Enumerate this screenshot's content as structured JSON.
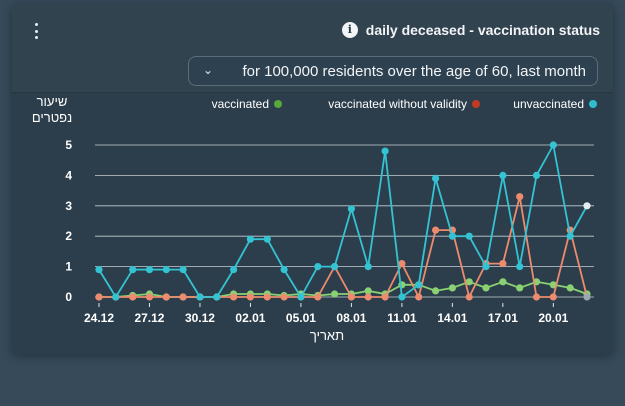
{
  "header": {
    "title": "daily deceased - vaccination status",
    "info_icon": "info-icon",
    "menu_icon": "kebab-menu-icon",
    "filter": {
      "selected": "for 100,000 residents over the age of 60, last month",
      "chevron_icon": "chevron-down-icon"
    }
  },
  "colors": {
    "vaccinated": "#8ad173",
    "vaccinated_legend": "#5aa83a",
    "without_validity": "#ec8b6e",
    "without_validity_legend": "#c23b21",
    "unvaccinated": "#34c3d2",
    "unvaccinated_legend": "#2fbdd0",
    "grid": "#e1e7ea",
    "text": "#ffffff"
  },
  "chart_data": {
    "type": "line",
    "ylabel": "שיעור נפטרים",
    "xlabel": "תאריך",
    "ylim": [
      0,
      5
    ],
    "yticks": [
      0,
      1,
      2,
      3,
      4,
      5
    ],
    "grid": true,
    "legend_position": "top",
    "legend": [
      "unvaccinated",
      "vaccinated without validity",
      "vaccinated"
    ],
    "x": [
      "24.12",
      "25.12",
      "26.12",
      "27.12",
      "28.12",
      "29.12",
      "30.12",
      "31.12",
      "01.01",
      "02.01",
      "03.01",
      "04.01",
      "05.01",
      "06.01",
      "07.01",
      "08.01",
      "09.01",
      "10.01",
      "11.01",
      "12.01",
      "13.01",
      "14.01",
      "15.01",
      "16.01",
      "17.01",
      "18.01",
      "19.01",
      "20.01",
      "21.01",
      "22.01"
    ],
    "tick_labels": [
      {
        "index": 0,
        "label": "24.12"
      },
      {
        "index": 3,
        "label": "27.12"
      },
      {
        "index": 6,
        "label": "30.12"
      },
      {
        "index": 9,
        "label": "02.01"
      },
      {
        "index": 12,
        "label": "05.01"
      },
      {
        "index": 15,
        "label": "08.01"
      },
      {
        "index": 18,
        "label": "11.01"
      },
      {
        "index": 21,
        "label": "14.01"
      },
      {
        "index": 24,
        "label": "17.01"
      },
      {
        "index": 27,
        "label": "20.01"
      }
    ],
    "series": [
      {
        "name": "unvaccinated",
        "key": "unvaccinated",
        "values": [
          0.9,
          0,
          0.9,
          0.9,
          0.9,
          0.9,
          0,
          0,
          0.9,
          1.9,
          1.9,
          0.9,
          0,
          1.0,
          1.0,
          2.9,
          1.0,
          4.8,
          0,
          0.4,
          3.9,
          2.0,
          2.0,
          1.0,
          4.0,
          1.0,
          4.0,
          5.0,
          2.0,
          3.0
        ]
      },
      {
        "name": "vaccinated without validity",
        "key": "without_validity",
        "values": [
          0,
          0,
          0,
          0,
          0,
          0,
          0,
          0,
          0,
          0,
          0,
          0,
          0,
          0,
          1.0,
          0,
          0,
          0,
          1.1,
          0,
          2.2,
          2.2,
          0,
          1.1,
          1.1,
          3.3,
          0,
          0,
          2.2,
          0
        ]
      },
      {
        "name": "vaccinated",
        "key": "vaccinated",
        "values": [
          0,
          0,
          0.05,
          0.1,
          0,
          0,
          0,
          0,
          0.1,
          0.1,
          0.1,
          0.05,
          0.1,
          0.05,
          0.1,
          0.1,
          0.2,
          0.1,
          0.4,
          0.4,
          0.2,
          0.3,
          0.5,
          0.3,
          0.5,
          0.3,
          0.5,
          0.4,
          0.3,
          0.1
        ]
      }
    ]
  }
}
